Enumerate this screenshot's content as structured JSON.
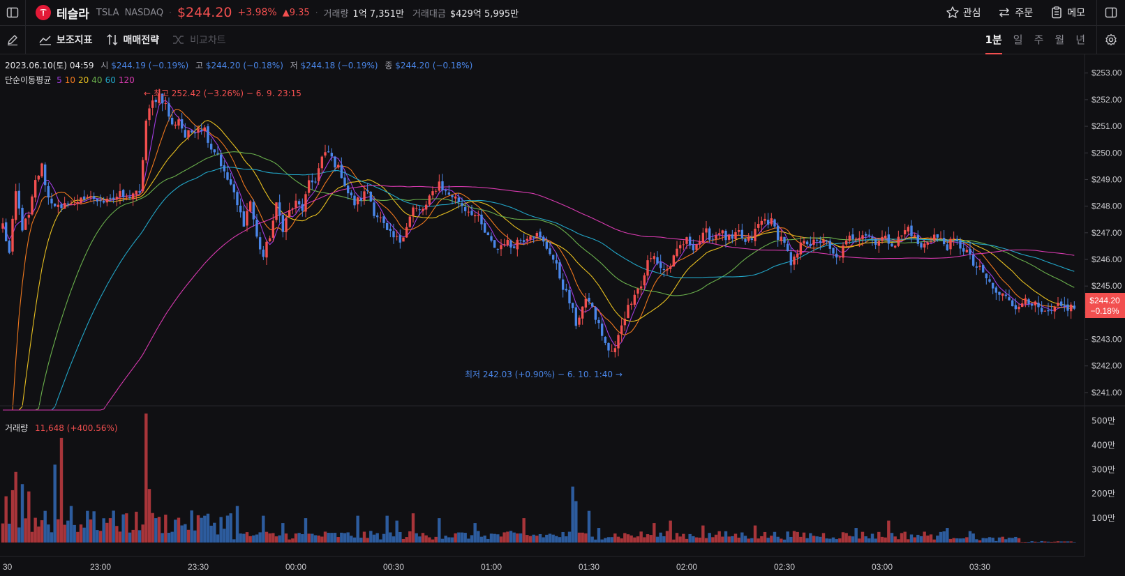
{
  "header": {
    "name": "테슬라",
    "ticker": "TSLA",
    "exchange": "NASDAQ",
    "price": "$244.20",
    "change_pct": "+3.98%",
    "change_abs": "▲9.35",
    "volume_label": "거래량",
    "volume_value": "1억 7,351만",
    "turnover_label": "거래대금",
    "turnover_value": "$429억 5,995만",
    "actions": {
      "watch": "관심",
      "order": "주문",
      "memo": "메모"
    }
  },
  "toolbar": {
    "indicators": "보조지표",
    "strategy": "매매전략",
    "compare": "비교차트",
    "timeframes": [
      "1분",
      "일",
      "주",
      "월",
      "년"
    ],
    "active_timeframe": "1분"
  },
  "ohlc": {
    "date": "2023.06.10(토) 04:59",
    "open_label": "시",
    "open": "$244.19 (−0.19%)",
    "high_label": "고",
    "high": "$244.20 (−0.18%)",
    "low_label": "저",
    "low": "$244.18 (−0.19%)",
    "close_label": "종",
    "close": "$244.20 (−0.18%)"
  },
  "ma_legend": {
    "label": "단순이동평균",
    "periods": [
      {
        "p": "5",
        "color": "#a03ce0"
      },
      {
        "p": "10",
        "color": "#f0781e"
      },
      {
        "p": "20",
        "color": "#e8c020"
      },
      {
        "p": "40",
        "color": "#6ab04c"
      },
      {
        "p": "60",
        "color": "#22a6c8"
      },
      {
        "p": "120",
        "color": "#d83ab0"
      }
    ]
  },
  "annotations": {
    "high": "← 최고 252.42 (−3.26%) − 6. 9. 23:15",
    "low": "최저 242.03 (+0.90%) − 6. 10. 1:40 →"
  },
  "volume_legend": {
    "label": "거래량",
    "value": "11,648 (+400.56%)"
  },
  "current_price_tag": {
    "price": "$244.20",
    "pct": "−0.18%"
  },
  "colors": {
    "up": "#f24f4f",
    "down": "#4a86e8",
    "vol_up": "#a8353a",
    "vol_down": "#2d5c9e",
    "bg": "#101013"
  },
  "chart_data": {
    "type": "candlestick",
    "price_axis": {
      "ticks": [
        "$253.00",
        "$252.00",
        "$251.00",
        "$250.00",
        "$249.00",
        "$248.00",
        "$247.00",
        "$246.00",
        "$245.00",
        "$244.00",
        "$243.00",
        "$242.00",
        "$241.00"
      ],
      "ylim": [
        240.5,
        253.7
      ]
    },
    "volume_axis": {
      "ticks": [
        "500만",
        "400만",
        "300만",
        "200만",
        "100만"
      ],
      "ylim": [
        0,
        530
      ]
    },
    "time_ticks": [
      {
        "label": "30",
        "x": 0
      },
      {
        "label": "23:00",
        "x": 30
      },
      {
        "label": "23:30",
        "x": 60
      },
      {
        "label": "00:00",
        "x": 90
      },
      {
        "label": "00:30",
        "x": 120
      },
      {
        "label": "01:00",
        "x": 150
      },
      {
        "label": "01:30",
        "x": 180
      },
      {
        "label": "02:00",
        "x": 210
      },
      {
        "label": "02:30",
        "x": 240
      },
      {
        "label": "03:00",
        "x": 270
      },
      {
        "label": "03:30",
        "x": 300
      }
    ],
    "close_keyframes": [
      [
        0,
        247.3
      ],
      [
        2,
        246.2
      ],
      [
        4,
        248.5
      ],
      [
        6,
        247.2
      ],
      [
        8,
        247.6
      ],
      [
        10,
        248.9
      ],
      [
        12,
        249.5
      ],
      [
        14,
        248.3
      ],
      [
        16,
        248.1
      ],
      [
        18,
        247.8
      ],
      [
        20,
        248.2
      ],
      [
        22,
        248.0
      ],
      [
        24,
        248.4
      ],
      [
        26,
        248.2
      ],
      [
        28,
        248.3
      ],
      [
        30,
        248.1
      ],
      [
        32,
        248.4
      ],
      [
        34,
        248.3
      ],
      [
        36,
        248.4
      ],
      [
        38,
        248.3
      ],
      [
        40,
        248.5
      ],
      [
        42,
        248.4
      ],
      [
        44,
        251.2
      ],
      [
        46,
        251.9
      ],
      [
        48,
        252.2
      ],
      [
        50,
        251.8
      ],
      [
        52,
        251.0
      ],
      [
        54,
        251.3
      ],
      [
        56,
        250.6
      ],
      [
        58,
        250.8
      ],
      [
        60,
        251.0
      ],
      [
        62,
        250.9
      ],
      [
        64,
        250.2
      ],
      [
        66,
        250.0
      ],
      [
        68,
        249.2
      ],
      [
        70,
        248.8
      ],
      [
        72,
        248.0
      ],
      [
        74,
        247.4
      ],
      [
        76,
        248.2
      ],
      [
        78,
        246.8
      ],
      [
        80,
        246.1
      ],
      [
        82,
        246.9
      ],
      [
        84,
        248.0
      ],
      [
        86,
        247.2
      ],
      [
        88,
        247.8
      ],
      [
        90,
        248.1
      ],
      [
        92,
        247.9
      ],
      [
        94,
        248.8
      ],
      [
        96,
        249.0
      ],
      [
        98,
        249.8
      ],
      [
        100,
        250.0
      ],
      [
        102,
        249.6
      ],
      [
        104,
        249.2
      ],
      [
        106,
        248.5
      ],
      [
        108,
        248.1
      ],
      [
        110,
        248.3
      ],
      [
        112,
        248.6
      ],
      [
        114,
        247.8
      ],
      [
        116,
        247.5
      ],
      [
        118,
        247.0
      ],
      [
        120,
        246.8
      ],
      [
        122,
        246.7
      ],
      [
        124,
        247.3
      ],
      [
        126,
        247.9
      ],
      [
        128,
        247.8
      ],
      [
        130,
        248.0
      ],
      [
        132,
        248.5
      ],
      [
        134,
        248.9
      ],
      [
        136,
        248.5
      ],
      [
        138,
        248.4
      ],
      [
        140,
        248.2
      ],
      [
        142,
        247.9
      ],
      [
        144,
        247.8
      ],
      [
        146,
        247.5
      ],
      [
        148,
        247.0
      ],
      [
        150,
        246.6
      ],
      [
        152,
        246.4
      ],
      [
        154,
        246.7
      ],
      [
        156,
        246.5
      ],
      [
        158,
        246.7
      ],
      [
        160,
        246.8
      ],
      [
        162,
        247.0
      ],
      [
        164,
        246.9
      ],
      [
        166,
        246.6
      ],
      [
        168,
        246.3
      ],
      [
        170,
        245.7
      ],
      [
        172,
        245.0
      ],
      [
        174,
        244.4
      ],
      [
        176,
        243.6
      ],
      [
        178,
        244.2
      ],
      [
        180,
        244.5
      ],
      [
        182,
        243.8
      ],
      [
        184,
        243.2
      ],
      [
        186,
        242.5
      ],
      [
        188,
        242.6
      ],
      [
        190,
        243.6
      ],
      [
        192,
        244.2
      ],
      [
        194,
        244.8
      ],
      [
        196,
        245.0
      ],
      [
        198,
        245.9
      ],
      [
        200,
        246.1
      ],
      [
        202,
        245.7
      ],
      [
        204,
        245.6
      ],
      [
        206,
        246.0
      ],
      [
        208,
        246.5
      ],
      [
        210,
        246.7
      ],
      [
        212,
        246.5
      ],
      [
        214,
        246.7
      ],
      [
        216,
        247.0
      ],
      [
        218,
        246.8
      ],
      [
        220,
        247.1
      ],
      [
        222,
        246.8
      ],
      [
        224,
        246.7
      ],
      [
        226,
        247.0
      ],
      [
        228,
        246.6
      ],
      [
        230,
        246.8
      ],
      [
        232,
        247.3
      ],
      [
        234,
        247.5
      ],
      [
        236,
        247.4
      ],
      [
        238,
        246.9
      ],
      [
        240,
        246.7
      ],
      [
        242,
        245.7
      ],
      [
        244,
        246.2
      ],
      [
        246,
        246.8
      ],
      [
        248,
        246.6
      ],
      [
        250,
        246.6
      ],
      [
        252,
        246.8
      ],
      [
        254,
        246.3
      ],
      [
        256,
        246.0
      ],
      [
        258,
        246.4
      ],
      [
        260,
        246.8
      ],
      [
        262,
        246.9
      ],
      [
        264,
        247.0
      ],
      [
        266,
        246.9
      ],
      [
        268,
        246.7
      ],
      [
        270,
        246.8
      ],
      [
        272,
        246.7
      ],
      [
        274,
        246.6
      ],
      [
        276,
        246.9
      ],
      [
        278,
        247.2
      ],
      [
        280,
        246.8
      ],
      [
        282,
        246.4
      ],
      [
        284,
        246.7
      ],
      [
        286,
        246.9
      ],
      [
        288,
        246.7
      ],
      [
        290,
        246.5
      ],
      [
        292,
        246.7
      ],
      [
        294,
        246.5
      ],
      [
        296,
        246.3
      ],
      [
        298,
        245.8
      ],
      [
        300,
        245.6
      ],
      [
        302,
        245.3
      ],
      [
        304,
        244.9
      ],
      [
        306,
        244.6
      ],
      [
        308,
        244.7
      ],
      [
        310,
        244.4
      ],
      [
        312,
        244.1
      ],
      [
        314,
        244.6
      ],
      [
        316,
        244.4
      ],
      [
        318,
        244.1
      ],
      [
        320,
        243.9
      ],
      [
        322,
        244.0
      ],
      [
        324,
        244.2
      ],
      [
        326,
        244.2
      ],
      [
        328,
        244.2
      ]
    ],
    "volume_spikes": [
      [
        1,
        "up",
        190
      ],
      [
        3,
        "up",
        215
      ],
      [
        4,
        "up",
        290
      ],
      [
        6,
        "down",
        240
      ],
      [
        8,
        "up",
        210
      ],
      [
        13,
        "down",
        130
      ],
      [
        16,
        "down",
        320
      ],
      [
        18,
        "up",
        430
      ],
      [
        21,
        "down",
        150
      ],
      [
        26,
        "down",
        130
      ],
      [
        33,
        "up",
        100
      ],
      [
        38,
        "up",
        120
      ],
      [
        44,
        "up",
        530
      ],
      [
        45,
        "up",
        220
      ],
      [
        47,
        "down",
        100
      ],
      [
        62,
        "down",
        110
      ],
      [
        70,
        "down",
        120
      ],
      [
        72,
        "down",
        150
      ],
      [
        80,
        "down",
        110
      ],
      [
        86,
        "down",
        80
      ],
      [
        93,
        "down",
        100
      ],
      [
        109,
        "down",
        110
      ],
      [
        118,
        "down",
        110
      ],
      [
        121,
        "down",
        90
      ],
      [
        126,
        "up",
        120
      ],
      [
        134,
        "down",
        100
      ],
      [
        145,
        "down",
        80
      ],
      [
        160,
        "up",
        100
      ],
      [
        175,
        "down",
        230
      ],
      [
        176,
        "down",
        170
      ],
      [
        180,
        "down",
        130
      ],
      [
        183,
        "down",
        60
      ],
      [
        200,
        "up",
        80
      ],
      [
        205,
        "up",
        90
      ],
      [
        215,
        "up",
        70
      ],
      [
        231,
        "up",
        70
      ],
      [
        262,
        "down",
        60
      ],
      [
        272,
        "up",
        90
      ],
      [
        290,
        "down",
        60
      ]
    ]
  }
}
